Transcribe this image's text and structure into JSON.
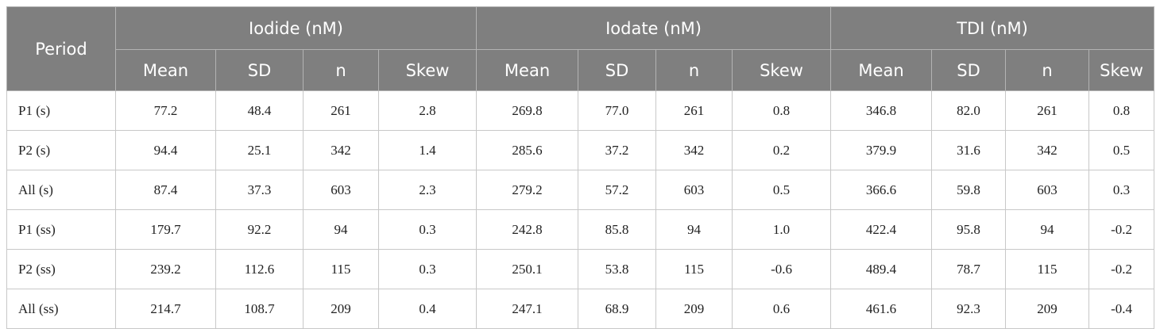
{
  "table": {
    "period_header": "Period",
    "groups": [
      {
        "title": "Iodide (nM)",
        "columns": [
          "Mean",
          "SD",
          "n",
          "Skew"
        ]
      },
      {
        "title": "Iodate (nM)",
        "columns": [
          "Mean",
          "SD",
          "n",
          "Skew"
        ]
      },
      {
        "title": "TDI (nM)",
        "columns": [
          "Mean",
          "SD",
          "n",
          "Skew"
        ]
      }
    ],
    "rows": [
      [
        "P1 (s)",
        "77.2",
        "48.4",
        "261",
        "2.8",
        "269.8",
        "77.0",
        "261",
        "0.8",
        "346.8",
        "82.0",
        "261",
        "0.8"
      ],
      [
        "P2 (s)",
        "94.4",
        "25.1",
        "342",
        "1.4",
        "285.6",
        "37.2",
        "342",
        "0.2",
        "379.9",
        "31.6",
        "342",
        "0.5"
      ],
      [
        "All (s)",
        "87.4",
        "37.3",
        "603",
        "2.3",
        "279.2",
        "57.2",
        "603",
        "0.5",
        "366.6",
        "59.8",
        "603",
        "0.3"
      ],
      [
        "P1 (ss)",
        "179.7",
        "92.2",
        "94",
        "0.3",
        "242.8",
        "85.8",
        "94",
        "1.0",
        "422.4",
        "95.8",
        "94",
        "-0.2"
      ],
      [
        "P2 (ss)",
        "239.2",
        "112.6",
        "115",
        "0.3",
        "250.1",
        "53.8",
        "115",
        "-0.6",
        "489.4",
        "78.7",
        "115",
        "-0.2"
      ],
      [
        "All (ss)",
        "214.7",
        "108.7",
        "209",
        "0.4",
        "247.1",
        "68.9",
        "209",
        "0.6",
        "461.6",
        "92.3",
        "209",
        "-0.4"
      ]
    ]
  }
}
